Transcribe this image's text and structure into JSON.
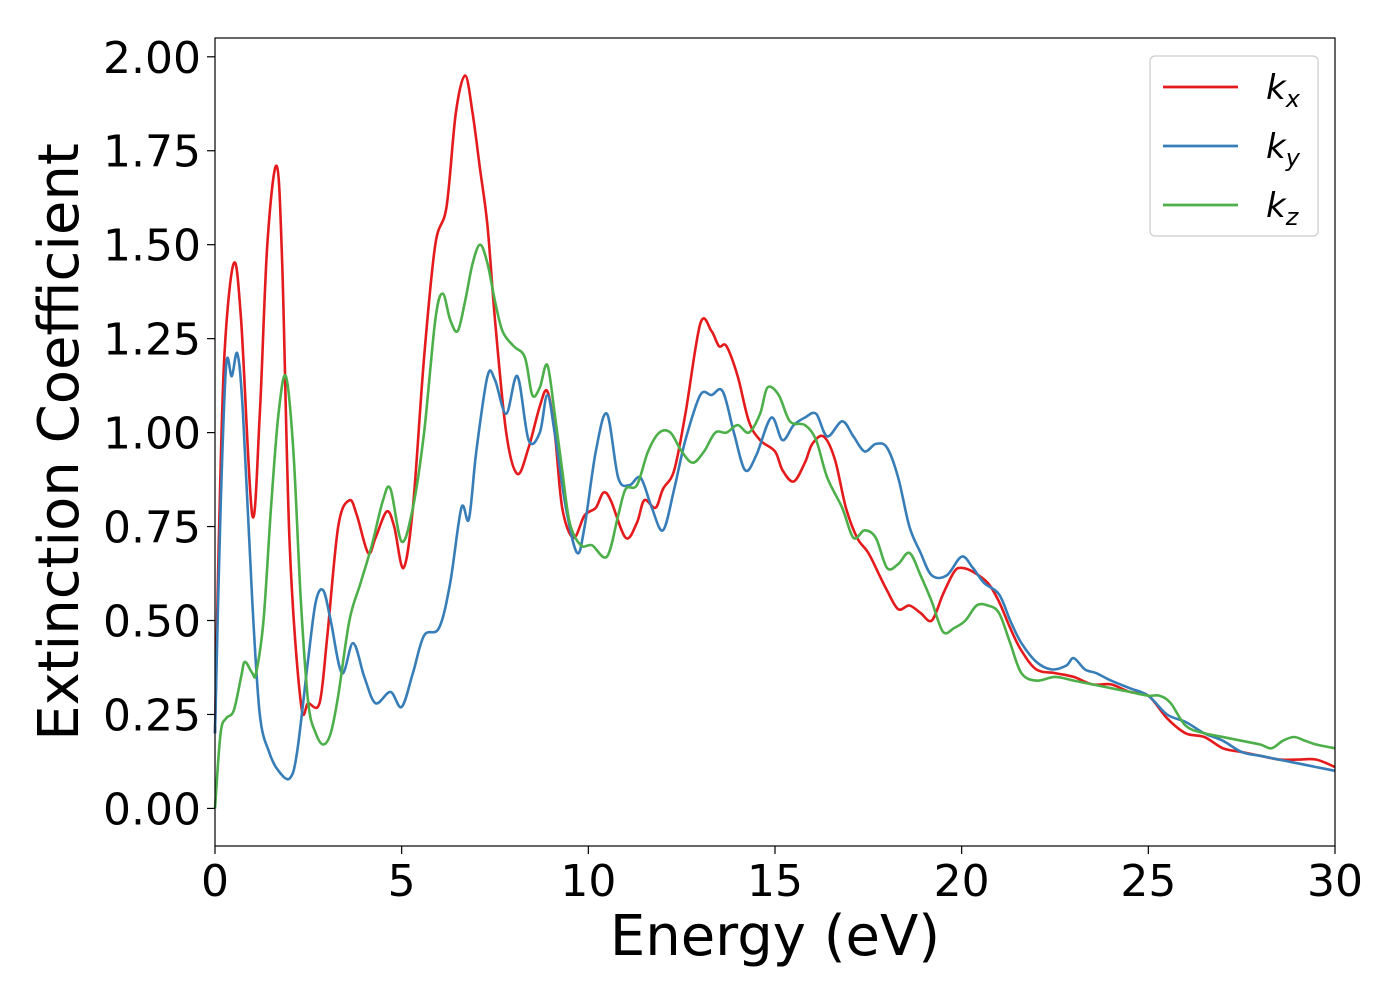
{
  "chart_data": {
    "type": "line",
    "title": "",
    "xlabel": "Energy (eV)",
    "ylabel": "Extinction Coefficient",
    "xlim": [
      0,
      30
    ],
    "ylim": [
      -0.1,
      2.05
    ],
    "xticks": [
      0,
      5,
      10,
      15,
      20,
      25,
      30
    ],
    "xtick_labels": [
      "0",
      "5",
      "10",
      "15",
      "20",
      "25",
      "30"
    ],
    "yticks": [
      0,
      0.25,
      0.5,
      0.75,
      1.0,
      1.25,
      1.5,
      1.75,
      2.0
    ],
    "ytick_labels": [
      "0.00",
      "0.25",
      "0.50",
      "0.75",
      "1.00",
      "1.25",
      "1.50",
      "1.75",
      "2.00"
    ],
    "grid": false,
    "legend_position": "top-right",
    "series": [
      {
        "name": "k",
        "subscript": "x",
        "color": "#e41a1c",
        "x": [
          0,
          0.1,
          0.25,
          0.5,
          0.7,
          1.0,
          1.2,
          1.4,
          1.65,
          1.8,
          2.0,
          2.3,
          2.5,
          2.8,
          3.0,
          3.3,
          3.6,
          3.8,
          4.1,
          4.3,
          4.6,
          4.8,
          5.05,
          5.3,
          5.6,
          5.9,
          6.2,
          6.45,
          6.7,
          6.9,
          7.1,
          7.3,
          7.5,
          7.8,
          8.1,
          8.4,
          8.7,
          8.9,
          9.1,
          9.3,
          9.6,
          9.9,
          10.2,
          10.4,
          10.6,
          11.0,
          11.3,
          11.5,
          11.8,
          12.0,
          12.3,
          12.6,
          13.0,
          13.3,
          13.5,
          13.7,
          14.0,
          14.3,
          14.6,
          15.0,
          15.2,
          15.5,
          15.8,
          16.0,
          16.3,
          16.6,
          16.9,
          17.2,
          17.5,
          17.8,
          18.0,
          18.3,
          18.6,
          18.9,
          19.2,
          19.5,
          19.8,
          20.0,
          20.3,
          20.7,
          21.0,
          21.3,
          21.6,
          22.0,
          22.5,
          23.0,
          23.5,
          24.0,
          24.5,
          25.0,
          25.5,
          26.0,
          26.5,
          27.0,
          27.5,
          28.0,
          28.5,
          29.0,
          29.5,
          30.0
        ],
        "y": [
          0.2,
          0.7,
          1.2,
          1.45,
          1.3,
          0.78,
          1.05,
          1.5,
          1.71,
          1.45,
          0.7,
          0.28,
          0.28,
          0.28,
          0.45,
          0.75,
          0.82,
          0.78,
          0.68,
          0.72,
          0.79,
          0.75,
          0.64,
          0.8,
          1.2,
          1.5,
          1.6,
          1.85,
          1.95,
          1.85,
          1.7,
          1.55,
          1.3,
          1.0,
          0.89,
          0.96,
          1.07,
          1.11,
          1.0,
          0.8,
          0.72,
          0.78,
          0.8,
          0.84,
          0.82,
          0.72,
          0.76,
          0.82,
          0.8,
          0.85,
          0.9,
          1.05,
          1.29,
          1.27,
          1.23,
          1.23,
          1.15,
          1.03,
          0.98,
          0.95,
          0.9,
          0.87,
          0.92,
          0.97,
          0.99,
          0.93,
          0.8,
          0.72,
          0.68,
          0.62,
          0.58,
          0.53,
          0.54,
          0.52,
          0.5,
          0.57,
          0.63,
          0.64,
          0.63,
          0.6,
          0.55,
          0.48,
          0.42,
          0.37,
          0.36,
          0.35,
          0.33,
          0.33,
          0.31,
          0.3,
          0.24,
          0.2,
          0.19,
          0.16,
          0.15,
          0.14,
          0.13,
          0.13,
          0.13,
          0.11
        ]
      },
      {
        "name": "k",
        "subscript": "y",
        "color": "#377eb8",
        "x": [
          0,
          0.15,
          0.3,
          0.45,
          0.6,
          0.75,
          1.0,
          1.2,
          1.45,
          1.7,
          2.0,
          2.2,
          2.5,
          2.7,
          2.9,
          3.1,
          3.4,
          3.7,
          4.0,
          4.3,
          4.7,
          5.0,
          5.3,
          5.6,
          6.0,
          6.3,
          6.6,
          6.8,
          7.0,
          7.3,
          7.5,
          7.8,
          8.1,
          8.4,
          8.7,
          8.9,
          9.1,
          9.4,
          9.7,
          9.9,
          10.2,
          10.5,
          10.8,
          11.1,
          11.4,
          11.7,
          12.0,
          12.3,
          12.6,
          13.0,
          13.3,
          13.6,
          13.9,
          14.2,
          14.5,
          14.9,
          15.2,
          15.5,
          15.8,
          16.1,
          16.4,
          16.8,
          17.1,
          17.4,
          17.7,
          18.0,
          18.3,
          18.6,
          18.9,
          19.2,
          19.6,
          20.0,
          20.3,
          20.6,
          21.0,
          21.3,
          21.6,
          22.0,
          22.4,
          22.8,
          23.0,
          23.3,
          23.6,
          24.0,
          24.5,
          25.0,
          25.5,
          26.0,
          26.5,
          27.0,
          27.5,
          28.0,
          28.5,
          29.0,
          29.5,
          30.0
        ],
        "y": [
          0.2,
          0.8,
          1.18,
          1.15,
          1.21,
          1.05,
          0.55,
          0.25,
          0.15,
          0.1,
          0.08,
          0.15,
          0.4,
          0.55,
          0.58,
          0.5,
          0.36,
          0.44,
          0.35,
          0.28,
          0.31,
          0.27,
          0.36,
          0.46,
          0.48,
          0.6,
          0.8,
          0.77,
          0.95,
          1.15,
          1.14,
          1.05,
          1.15,
          0.98,
          1.0,
          1.1,
          1.0,
          0.8,
          0.68,
          0.75,
          0.95,
          1.05,
          0.88,
          0.86,
          0.88,
          0.8,
          0.74,
          0.85,
          0.98,
          1.1,
          1.1,
          1.11,
          1.0,
          0.9,
          0.94,
          1.04,
          0.98,
          1.02,
          1.04,
          1.05,
          0.99,
          1.03,
          0.99,
          0.95,
          0.97,
          0.96,
          0.88,
          0.75,
          0.68,
          0.62,
          0.62,
          0.67,
          0.64,
          0.6,
          0.57,
          0.5,
          0.44,
          0.39,
          0.37,
          0.38,
          0.4,
          0.37,
          0.36,
          0.34,
          0.32,
          0.3,
          0.25,
          0.23,
          0.2,
          0.18,
          0.15,
          0.14,
          0.13,
          0.12,
          0.11,
          0.1
        ]
      },
      {
        "name": "k",
        "subscript": "z",
        "color": "#4daf4a",
        "x": [
          0,
          0.15,
          0.3,
          0.5,
          0.7,
          0.8,
          1.0,
          1.1,
          1.3,
          1.5,
          1.7,
          1.9,
          2.1,
          2.3,
          2.5,
          2.7,
          2.9,
          3.1,
          3.3,
          3.6,
          3.9,
          4.2,
          4.5,
          4.7,
          5.0,
          5.3,
          5.6,
          5.9,
          6.1,
          6.3,
          6.5,
          6.7,
          6.9,
          7.1,
          7.3,
          7.5,
          7.7,
          8.0,
          8.3,
          8.5,
          8.7,
          8.9,
          9.1,
          9.3,
          9.5,
          9.8,
          10.1,
          10.5,
          10.8,
          11.0,
          11.3,
          11.6,
          11.9,
          12.2,
          12.5,
          12.8,
          13.1,
          13.4,
          13.7,
          14.0,
          14.3,
          14.6,
          14.8,
          15.1,
          15.4,
          15.8,
          16.1,
          16.4,
          16.8,
          17.1,
          17.4,
          17.7,
          18.0,
          18.3,
          18.6,
          18.9,
          19.2,
          19.5,
          19.8,
          20.1,
          20.4,
          20.7,
          21.0,
          21.3,
          21.6,
          22.0,
          22.5,
          23.0,
          23.5,
          24.0,
          24.5,
          25.0,
          25.3,
          25.6,
          26.0,
          26.5,
          27.0,
          27.5,
          28.0,
          28.3,
          28.6,
          28.9,
          29.2,
          29.5,
          30.0
        ],
        "y": [
          0.0,
          0.2,
          0.24,
          0.26,
          0.35,
          0.39,
          0.36,
          0.36,
          0.5,
          0.8,
          1.05,
          1.15,
          0.95,
          0.55,
          0.28,
          0.2,
          0.17,
          0.2,
          0.3,
          0.5,
          0.6,
          0.7,
          0.82,
          0.85,
          0.71,
          0.8,
          1.0,
          1.3,
          1.37,
          1.3,
          1.27,
          1.35,
          1.45,
          1.5,
          1.45,
          1.35,
          1.27,
          1.23,
          1.2,
          1.1,
          1.12,
          1.18,
          1.05,
          0.9,
          0.76,
          0.7,
          0.7,
          0.67,
          0.78,
          0.85,
          0.86,
          0.95,
          1.0,
          1.0,
          0.95,
          0.92,
          0.95,
          1.0,
          1.0,
          1.02,
          1.0,
          1.05,
          1.12,
          1.1,
          1.03,
          1.02,
          0.98,
          0.88,
          0.8,
          0.72,
          0.74,
          0.72,
          0.64,
          0.65,
          0.68,
          0.62,
          0.55,
          0.47,
          0.48,
          0.5,
          0.54,
          0.54,
          0.52,
          0.44,
          0.36,
          0.34,
          0.35,
          0.34,
          0.33,
          0.32,
          0.31,
          0.3,
          0.3,
          0.28,
          0.22,
          0.2,
          0.19,
          0.18,
          0.17,
          0.16,
          0.18,
          0.19,
          0.18,
          0.17,
          0.16
        ]
      }
    ]
  }
}
